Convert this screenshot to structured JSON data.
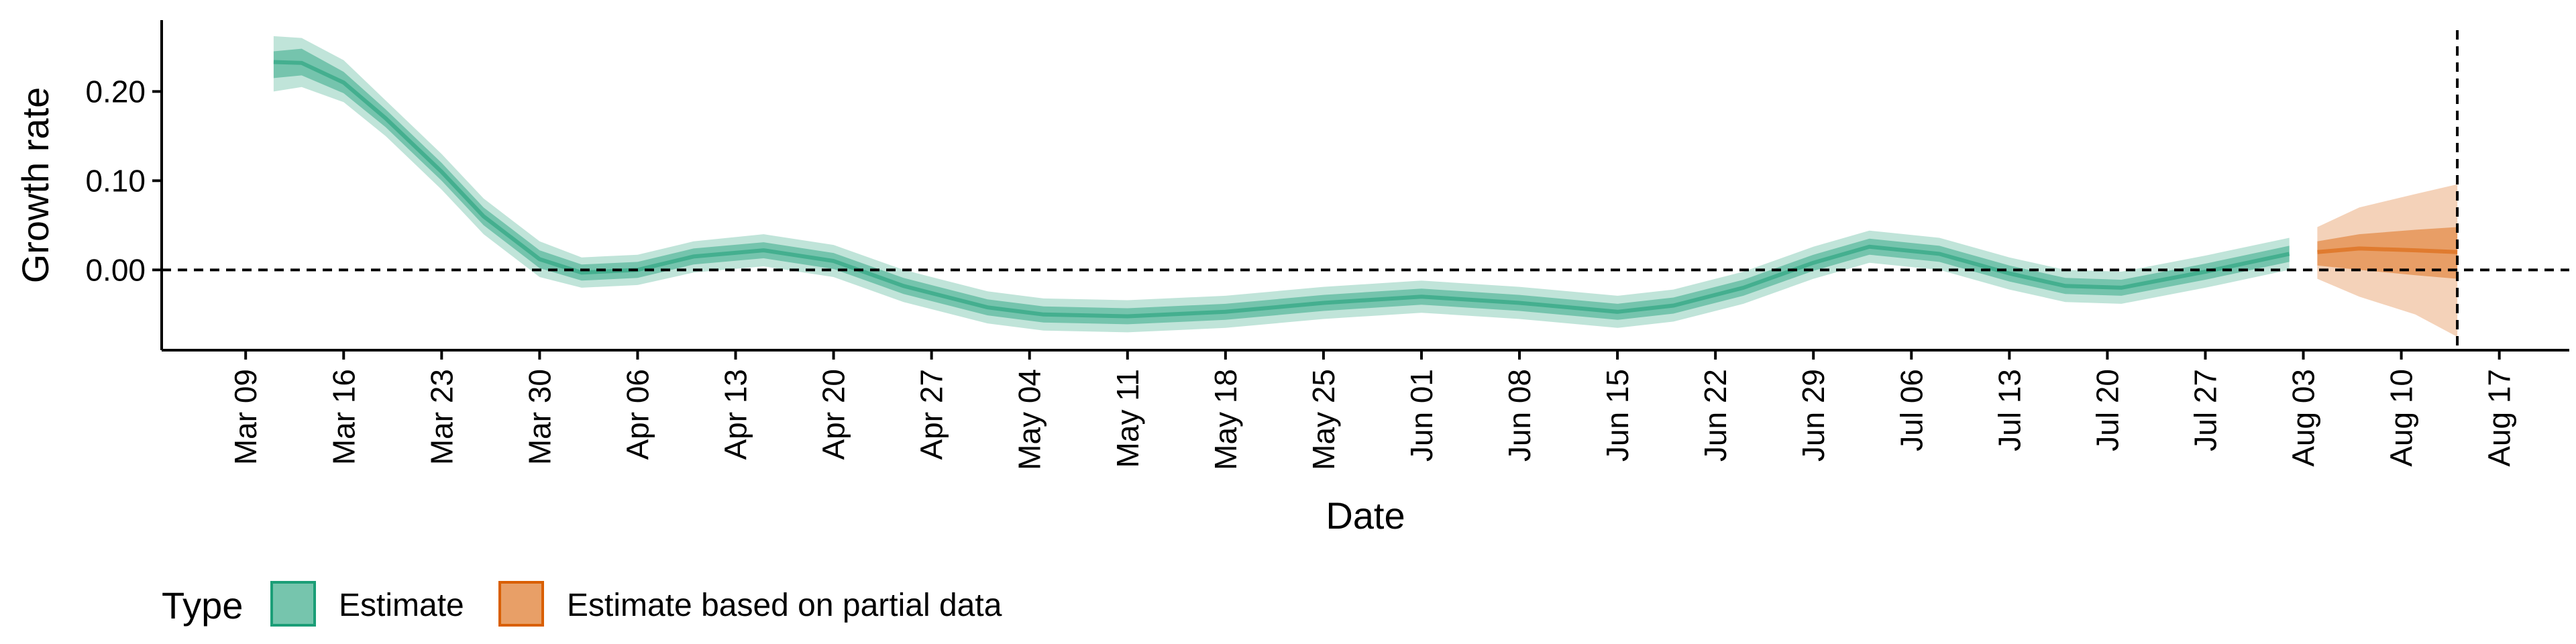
{
  "chart_data": {
    "type": "area",
    "xlabel": "Date",
    "ylabel": "Growth rate",
    "x_ticks": [
      "2020-03-09",
      "2020-03-16",
      "2020-03-23",
      "2020-03-30",
      "2020-04-06",
      "2020-04-13",
      "2020-04-20",
      "2020-04-27",
      "2020-05-04",
      "2020-05-11",
      "2020-05-18",
      "2020-05-25",
      "2020-06-01",
      "2020-06-08",
      "2020-06-15",
      "2020-06-22",
      "2020-06-29",
      "2020-07-06",
      "2020-07-13",
      "2020-07-20",
      "2020-07-27",
      "2020-08-03",
      "2020-08-10",
      "2020-08-17"
    ],
    "x_tick_labels": [
      "Mar 09",
      "Mar 16",
      "Mar 23",
      "Mar 30",
      "Apr 06",
      "Apr 13",
      "Apr 20",
      "Apr 27",
      "May 04",
      "May 11",
      "May 18",
      "May 25",
      "Jun 01",
      "Jun 08",
      "Jun 15",
      "Jun 22",
      "Jun 29",
      "Jul 06",
      "Jul 13",
      "Jul 20",
      "Jul 27",
      "Aug 03",
      "Aug 10",
      "Aug 17"
    ],
    "xlim": [
      "2020-03-03",
      "2020-08-22"
    ],
    "ylim": [
      -0.09,
      0.28
    ],
    "y_ticks": [
      0.0,
      0.1,
      0.2
    ],
    "y_tick_labels": [
      "0.00",
      "0.10",
      "0.20"
    ],
    "reference_lines": {
      "hline_y": 0,
      "vline_x": "2020-08-14",
      "style": "dashed"
    },
    "grid": false,
    "legend": {
      "title": "Type",
      "position": "bottom-left",
      "entries": [
        {
          "label": "Estimate",
          "color": "#1b9e77"
        },
        {
          "label": "Estimate based on partial data",
          "color": "#d95f02"
        }
      ]
    },
    "series": [
      {
        "name": "Estimate",
        "color": "#1b9e77",
        "points": [
          {
            "date": "2020-03-11",
            "median": 0.233,
            "lower50": 0.215,
            "upper50": 0.245,
            "lower90": 0.2,
            "upper90": 0.262
          },
          {
            "date": "2020-03-13",
            "median": 0.232,
            "lower50": 0.218,
            "upper50": 0.248,
            "lower90": 0.205,
            "upper90": 0.26
          },
          {
            "date": "2020-03-16",
            "median": 0.21,
            "lower50": 0.198,
            "upper50": 0.222,
            "lower90": 0.188,
            "upper90": 0.235
          },
          {
            "date": "2020-03-19",
            "median": 0.17,
            "lower50": 0.16,
            "upper50": 0.18,
            "lower90": 0.15,
            "upper90": 0.19
          },
          {
            "date": "2020-03-23",
            "median": 0.11,
            "lower50": 0.1,
            "upper50": 0.12,
            "lower90": 0.09,
            "upper90": 0.13
          },
          {
            "date": "2020-03-26",
            "median": 0.06,
            "lower50": 0.05,
            "upper50": 0.07,
            "lower90": 0.04,
            "upper90": 0.08
          },
          {
            "date": "2020-03-30",
            "median": 0.012,
            "lower50": 0.002,
            "upper50": 0.022,
            "lower90": -0.008,
            "upper90": 0.032
          },
          {
            "date": "2020-04-02",
            "median": -0.003,
            "lower50": -0.012,
            "upper50": 0.006,
            "lower90": -0.02,
            "upper90": 0.014
          },
          {
            "date": "2020-04-06",
            "median": 0.0,
            "lower50": -0.009,
            "upper50": 0.009,
            "lower90": -0.017,
            "upper90": 0.017
          },
          {
            "date": "2020-04-10",
            "median": 0.015,
            "lower50": 0.006,
            "upper50": 0.024,
            "lower90": -0.003,
            "upper90": 0.032
          },
          {
            "date": "2020-04-15",
            "median": 0.022,
            "lower50": 0.013,
            "upper50": 0.031,
            "lower90": 0.004,
            "upper90": 0.04
          },
          {
            "date": "2020-04-20",
            "median": 0.01,
            "lower50": 0.001,
            "upper50": 0.019,
            "lower90": -0.008,
            "upper90": 0.028
          },
          {
            "date": "2020-04-25",
            "median": -0.018,
            "lower50": -0.027,
            "upper50": -0.009,
            "lower90": -0.036,
            "upper90": 0.0
          },
          {
            "date": "2020-05-01",
            "median": -0.042,
            "lower50": -0.051,
            "upper50": -0.033,
            "lower90": -0.06,
            "upper90": -0.024
          },
          {
            "date": "2020-05-05",
            "median": -0.05,
            "lower50": -0.059,
            "upper50": -0.041,
            "lower90": -0.068,
            "upper90": -0.032
          },
          {
            "date": "2020-05-11",
            "median": -0.052,
            "lower50": -0.061,
            "upper50": -0.043,
            "lower90": -0.07,
            "upper90": -0.034
          },
          {
            "date": "2020-05-18",
            "median": -0.047,
            "lower50": -0.056,
            "upper50": -0.038,
            "lower90": -0.065,
            "upper90": -0.029
          },
          {
            "date": "2020-05-25",
            "median": -0.037,
            "lower50": -0.046,
            "upper50": -0.028,
            "lower90": -0.055,
            "upper90": -0.019
          },
          {
            "date": "2020-06-01",
            "median": -0.03,
            "lower50": -0.039,
            "upper50": -0.021,
            "lower90": -0.048,
            "upper90": -0.012
          },
          {
            "date": "2020-06-08",
            "median": -0.037,
            "lower50": -0.046,
            "upper50": -0.028,
            "lower90": -0.055,
            "upper90": -0.019
          },
          {
            "date": "2020-06-15",
            "median": -0.047,
            "lower50": -0.056,
            "upper50": -0.038,
            "lower90": -0.065,
            "upper90": -0.029
          },
          {
            "date": "2020-06-19",
            "median": -0.04,
            "lower50": -0.049,
            "upper50": -0.031,
            "lower90": -0.058,
            "upper90": -0.022
          },
          {
            "date": "2020-06-24",
            "median": -0.02,
            "lower50": -0.029,
            "upper50": -0.011,
            "lower90": -0.038,
            "upper90": -0.002
          },
          {
            "date": "2020-06-29",
            "median": 0.008,
            "lower50": -0.001,
            "upper50": 0.017,
            "lower90": -0.01,
            "upper90": 0.026
          },
          {
            "date": "2020-07-03",
            "median": 0.026,
            "lower50": 0.017,
            "upper50": 0.035,
            "lower90": 0.008,
            "upper90": 0.044
          },
          {
            "date": "2020-07-08",
            "median": 0.018,
            "lower50": 0.009,
            "upper50": 0.027,
            "lower90": 0.0,
            "upper90": 0.036
          },
          {
            "date": "2020-07-13",
            "median": -0.004,
            "lower50": -0.013,
            "upper50": 0.005,
            "lower90": -0.022,
            "upper90": 0.014
          },
          {
            "date": "2020-07-17",
            "median": -0.018,
            "lower50": -0.027,
            "upper50": -0.009,
            "lower90": -0.036,
            "upper90": 0.0
          },
          {
            "date": "2020-07-21",
            "median": -0.02,
            "lower50": -0.029,
            "upper50": -0.011,
            "lower90": -0.038,
            "upper90": -0.002
          },
          {
            "date": "2020-07-27",
            "median": -0.002,
            "lower50": -0.011,
            "upper50": 0.007,
            "lower90": -0.02,
            "upper90": 0.016
          },
          {
            "date": "2020-08-02",
            "median": 0.018,
            "lower50": 0.009,
            "upper50": 0.027,
            "lower90": 0.0,
            "upper90": 0.036
          }
        ]
      },
      {
        "name": "Estimate based on partial data",
        "color": "#d95f02",
        "points": [
          {
            "date": "2020-08-04",
            "median": 0.02,
            "lower50": 0.005,
            "upper50": 0.032,
            "lower90": -0.01,
            "upper90": 0.048
          },
          {
            "date": "2020-08-07",
            "median": 0.024,
            "lower50": 0.0,
            "upper50": 0.04,
            "lower90": -0.03,
            "upper90": 0.07
          },
          {
            "date": "2020-08-11",
            "median": 0.022,
            "lower50": -0.006,
            "upper50": 0.045,
            "lower90": -0.05,
            "upper90": 0.085
          },
          {
            "date": "2020-08-14",
            "median": 0.02,
            "lower50": -0.01,
            "upper50": 0.048,
            "lower90": -0.075,
            "upper90": 0.096
          }
        ]
      }
    ]
  }
}
